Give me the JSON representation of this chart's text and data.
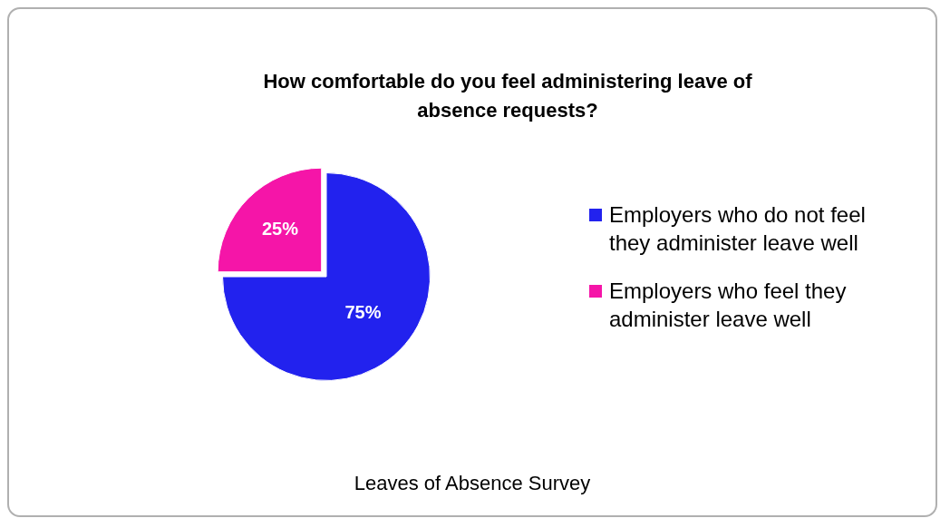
{
  "chart_data": {
    "type": "pie",
    "title": "How comfortable do you feel administering leave of absence requests?",
    "categories": [
      "Employers who do not feel they administer leave well",
      "Employers who feel they administer leave well"
    ],
    "values": [
      75,
      25
    ],
    "colors": [
      "#2222ee",
      "#f515a8"
    ],
    "value_labels": [
      "75%",
      "25%"
    ],
    "legend": "right",
    "annotations": [
      "Leaves of Absence Survey"
    ]
  }
}
